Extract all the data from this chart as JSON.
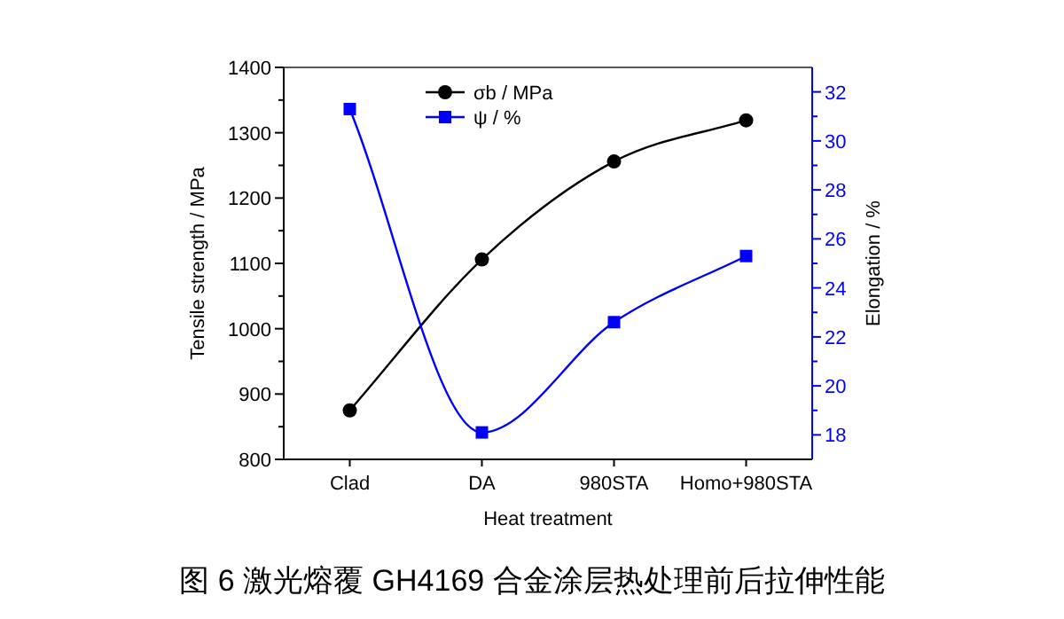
{
  "chart_data": {
    "type": "line",
    "xlabel": "Heat treatment",
    "ylabel": "Tensile strength / MPa",
    "y2label": "Elongation / %",
    "categories": [
      "Clad",
      "DA",
      "980STA",
      "Homo+980STA"
    ],
    "series": [
      {
        "name": "σb / MPa",
        "color": "#000000",
        "marker": "circle",
        "values": [
          875,
          1106,
          1256,
          1319
        ]
      },
      {
        "name": "ψ / %",
        "color": "#0000ff",
        "marker": "square",
        "axis": "y2",
        "values": [
          31.3,
          18.1,
          22.6,
          25.3
        ]
      }
    ],
    "ylim": [
      800,
      1400
    ],
    "yticks": [
      800,
      {
        "value": 850,
        "label": null
      },
      900,
      {
        "value": 950,
        "label": null
      },
      1000,
      {
        "value": 1050,
        "label": null
      },
      1100,
      {
        "value": 1150,
        "label": null
      },
      1200,
      {
        "value": 1250,
        "label": null
      },
      1300,
      {
        "value": 1350,
        "label": null
      },
      1400
    ],
    "y2lim": [
      17,
      33
    ],
    "y2ticks": [
      18,
      {
        "value": 19,
        "label": null
      },
      20,
      {
        "value": 21,
        "label": null
      },
      22,
      {
        "value": 23,
        "label": null
      },
      24,
      {
        "value": 25,
        "label": null
      },
      26,
      {
        "value": 27,
        "label": null
      },
      28,
      {
        "value": 29,
        "label": null
      },
      30,
      {
        "value": 31,
        "label": null
      },
      32
    ],
    "legend": "top",
    "grid": false,
    "annotations": [
      "图 6  激光熔覆 GH4169 合金涂层热处理前后拉伸性能"
    ]
  }
}
